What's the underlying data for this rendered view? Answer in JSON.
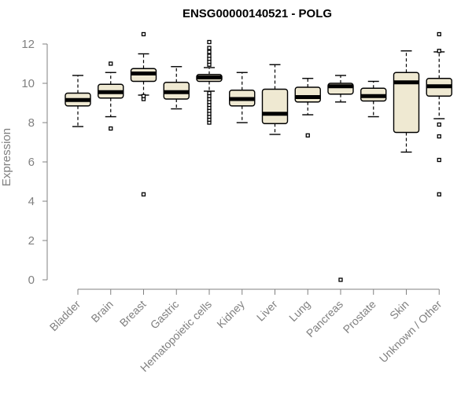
{
  "chart_data": {
    "type": "box",
    "title": "ENSG00000140521 - POLG",
    "xlabel": "",
    "ylabel": "Expression",
    "ylim": [
      0,
      12
    ],
    "yticks": [
      0,
      2,
      4,
      6,
      8,
      10,
      12
    ],
    "grid": false,
    "categories": [
      "Bladder",
      "Brain",
      "Breast",
      "Gastric",
      "Hematopoietic cells",
      "Kidney",
      "Liver",
      "Lung",
      "Pancreas",
      "Prostate",
      "Skin",
      "Unknown / Other"
    ],
    "boxes": [
      {
        "category": "Bladder",
        "whisker_low": 7.8,
        "q1": 8.85,
        "median": 9.15,
        "q3": 9.5,
        "whisker_high": 10.4,
        "outliers": []
      },
      {
        "category": "Brain",
        "whisker_low": 8.3,
        "q1": 9.25,
        "median": 9.55,
        "q3": 9.95,
        "whisker_high": 10.55,
        "outliers": [
          7.7,
          11.0
        ]
      },
      {
        "category": "Breast",
        "whisker_low": 9.4,
        "q1": 10.1,
        "median": 10.5,
        "q3": 10.75,
        "whisker_high": 11.5,
        "outliers": [
          4.35,
          9.2,
          9.35,
          12.5
        ]
      },
      {
        "category": "Gastric",
        "whisker_low": 8.7,
        "q1": 9.2,
        "median": 9.55,
        "q3": 10.05,
        "whisker_high": 10.85,
        "outliers": []
      },
      {
        "category": "Hematopoietic cells",
        "whisker_low": 9.6,
        "q1": 10.1,
        "median": 10.3,
        "q3": 10.45,
        "whisker_high": 10.8,
        "outliers": [
          8.0,
          8.15,
          8.3,
          8.45,
          8.6,
          8.75,
          8.9,
          9.05,
          9.2,
          9.35,
          9.5,
          10.95,
          11.1,
          11.25,
          11.4,
          11.6,
          11.8,
          12.1
        ]
      },
      {
        "category": "Kidney",
        "whisker_low": 8.0,
        "q1": 8.85,
        "median": 9.2,
        "q3": 9.65,
        "whisker_high": 10.55,
        "outliers": []
      },
      {
        "category": "Liver",
        "whisker_low": 7.4,
        "q1": 7.95,
        "median": 8.45,
        "q3": 9.7,
        "whisker_high": 10.95,
        "outliers": []
      },
      {
        "category": "Lung",
        "whisker_low": 8.4,
        "q1": 9.05,
        "median": 9.3,
        "q3": 9.8,
        "whisker_high": 10.25,
        "outliers": [
          7.35
        ]
      },
      {
        "category": "Pancreas",
        "whisker_low": 9.05,
        "q1": 9.45,
        "median": 9.85,
        "q3": 10.0,
        "whisker_high": 10.4,
        "outliers": [
          0.0
        ]
      },
      {
        "category": "Prostate",
        "whisker_low": 8.3,
        "q1": 9.1,
        "median": 9.35,
        "q3": 9.75,
        "whisker_high": 10.1,
        "outliers": []
      },
      {
        "category": "Skin",
        "whisker_low": 6.5,
        "q1": 7.5,
        "median": 10.05,
        "q3": 10.55,
        "whisker_high": 11.65,
        "outliers": []
      },
      {
        "category": "Unknown / Other",
        "whisker_low": 8.2,
        "q1": 9.35,
        "median": 9.85,
        "q3": 10.25,
        "whisker_high": 11.6,
        "outliers": [
          4.35,
          6.1,
          7.3,
          7.9,
          11.65,
          12.5
        ]
      }
    ]
  },
  "colors": {
    "box_fill": "#efe9d2",
    "box_stroke": "#000000",
    "axis": "#808080",
    "text": "#808080",
    "title": "#000000"
  }
}
